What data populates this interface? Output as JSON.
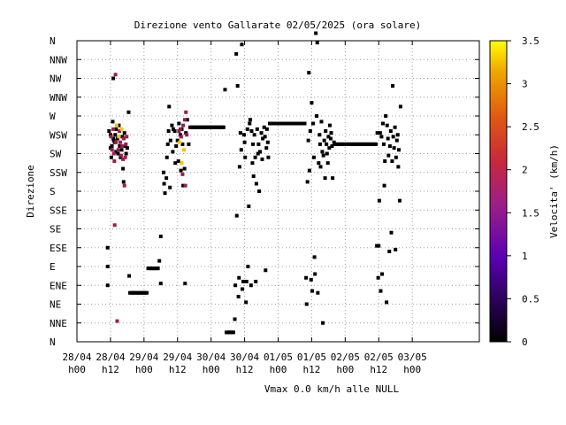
{
  "chart_data": {
    "type": "scatter",
    "title": "Direzione vento Gallarate 02/05/2025 (ora solare)",
    "ylabel": "Direzione",
    "footer": "Vmax 0.0 km/h  alle NULL",
    "colorbar_label": "Velocita' (km/h)",
    "colorbar_ticks": [
      "0",
      "0.5",
      "1",
      "1.5",
      "2",
      "2.5",
      "3",
      "3.5"
    ],
    "colorbar_range": [
      0,
      3.5
    ],
    "x_range_hours": [
      0,
      144
    ],
    "x_ticks": [
      {
        "h": 0,
        "l1": "28/04",
        "l2": "h00"
      },
      {
        "h": 12,
        "l1": "28/04",
        "l2": "h12"
      },
      {
        "h": 24,
        "l1": "29/04",
        "l2": "h00"
      },
      {
        "h": 36,
        "l1": "29/04",
        "l2": "h12"
      },
      {
        "h": 48,
        "l1": "30/04",
        "l2": "h00"
      },
      {
        "h": 60,
        "l1": "30/04",
        "l2": "h12"
      },
      {
        "h": 72,
        "l1": "01/05",
        "l2": "h00"
      },
      {
        "h": 84,
        "l1": "01/05",
        "l2": "h12"
      },
      {
        "h": 96,
        "l1": "02/05",
        "l2": "h00"
      },
      {
        "h": 108,
        "l1": "02/05",
        "l2": "h12"
      },
      {
        "h": 120,
        "l1": "03/05",
        "l2": "h00"
      }
    ],
    "y_categories": [
      "N",
      "NNE",
      "NE",
      "ENE",
      "E",
      "ESE",
      "SE",
      "SSE",
      "S",
      "SSW",
      "SW",
      "WSW",
      "W",
      "WNW",
      "NW",
      "NNW",
      "N"
    ],
    "grid": true,
    "colors": {
      "low": "#000000",
      "mid": "#9e1c4e",
      "high": "#f0c800"
    },
    "points": [
      [
        11,
        5
      ],
      [
        11,
        4
      ],
      [
        11,
        3
      ],
      [
        11.5,
        11.2
      ],
      [
        12,
        11
      ],
      [
        12,
        10.3
      ],
      [
        12.3,
        9.8
      ],
      [
        12.5,
        10.4
      ],
      [
        13,
        14
      ],
      [
        13,
        10.8
      ],
      [
        13.5,
        10.6
      ],
      [
        13.7,
        11
      ],
      [
        14,
        11.3
      ],
      [
        14,
        10.1
      ],
      [
        14.5,
        10.8
      ],
      [
        14.7,
        10
      ],
      [
        15,
        11.5
      ],
      [
        15.3,
        10.4
      ],
      [
        15.6,
        9.8
      ],
      [
        16,
        10.2
      ],
      [
        16.3,
        10.9
      ],
      [
        16.5,
        9.2
      ],
      [
        16.7,
        8.5
      ],
      [
        17,
        11.1
      ],
      [
        17.3,
        10.4
      ],
      [
        17.6,
        10
      ],
      [
        18,
        10.3
      ],
      [
        18.5,
        12.2
      ],
      [
        12.8,
        11.7
      ],
      [
        13.2,
        10.7
      ],
      [
        18.7,
        3.5
      ],
      [
        19,
        2.6
      ],
      [
        19.5,
        2.6
      ],
      [
        20,
        2.6
      ],
      [
        20.5,
        2.6
      ],
      [
        21,
        2.6
      ],
      [
        21.5,
        2.6
      ],
      [
        22,
        2.6
      ],
      [
        22.5,
        2.6
      ],
      [
        23,
        2.6
      ],
      [
        23.5,
        2.6
      ],
      [
        24,
        2.6
      ],
      [
        24.5,
        2.6
      ],
      [
        25,
        2.6
      ],
      [
        25.5,
        3.9
      ],
      [
        26,
        3.9
      ],
      [
        26.5,
        3.9
      ],
      [
        27,
        3.9
      ],
      [
        27.5,
        3.9
      ],
      [
        28,
        3.9
      ],
      [
        28.5,
        3.9
      ],
      [
        29,
        3.9
      ],
      [
        29.5,
        4.3
      ],
      [
        30,
        3.1
      ],
      [
        30,
        5.6
      ],
      [
        31,
        9
      ],
      [
        31.2,
        8.4
      ],
      [
        31.5,
        7.9
      ],
      [
        32,
        8.7
      ],
      [
        32.2,
        9.8
      ],
      [
        32.5,
        10.5
      ],
      [
        32.8,
        11.2
      ],
      [
        33,
        12.5
      ],
      [
        33.3,
        8.2
      ],
      [
        33.5,
        10.7
      ],
      [
        34,
        11.5
      ],
      [
        34.3,
        10.1
      ],
      [
        34.5,
        11.3
      ],
      [
        35,
        11.2
      ],
      [
        35.2,
        9.5
      ],
      [
        35.5,
        10.4
      ],
      [
        36,
        10.7
      ],
      [
        36.3,
        9.6
      ],
      [
        36.5,
        11.6
      ],
      [
        37,
        11
      ],
      [
        37.2,
        9.1
      ],
      [
        37.5,
        11.3
      ],
      [
        37.8,
        10.5
      ],
      [
        38,
        8.3
      ],
      [
        38.5,
        9.2
      ],
      [
        38.7,
        3.1
      ],
      [
        39,
        11.1
      ],
      [
        39.5,
        11.8
      ],
      [
        40,
        10.5
      ],
      [
        40.5,
        11.4
      ],
      [
        41,
        11.4
      ],
      [
        41.5,
        11.4
      ],
      [
        42,
        11.4
      ],
      [
        42.5,
        11.4
      ],
      [
        43,
        11.4
      ],
      [
        43.5,
        11.4
      ],
      [
        44,
        11.4
      ],
      [
        44.5,
        11.4
      ],
      [
        45,
        11.4
      ],
      [
        45.5,
        11.4
      ],
      [
        46,
        11.4
      ],
      [
        46.5,
        11.4
      ],
      [
        47,
        11.4
      ],
      [
        47.5,
        11.4
      ],
      [
        48,
        11.4
      ],
      [
        48.5,
        11.4
      ],
      [
        49,
        11.4
      ],
      [
        49.5,
        11.4
      ],
      [
        50,
        11.4
      ],
      [
        50.5,
        11.4
      ],
      [
        51,
        11.4
      ],
      [
        51.5,
        11.4
      ],
      [
        52,
        11.4
      ],
      [
        52.5,
        11.4
      ],
      [
        53,
        13.4
      ],
      [
        53.5,
        0.5
      ],
      [
        54,
        0.5
      ],
      [
        54.5,
        0.5
      ],
      [
        55,
        0.5
      ],
      [
        55.5,
        0.5
      ],
      [
        56,
        0.5
      ],
      [
        56.5,
        1.2
      ],
      [
        56.7,
        3
      ],
      [
        57,
        15.3
      ],
      [
        57.2,
        6.7
      ],
      [
        57.5,
        13.6
      ],
      [
        57.8,
        2.4
      ],
      [
        58,
        3.4
      ],
      [
        58.2,
        9.3
      ],
      [
        58.5,
        11.1
      ],
      [
        58.8,
        10.2
      ],
      [
        59,
        15.8
      ],
      [
        59.2,
        2.8
      ],
      [
        59.5,
        3.2
      ],
      [
        59.8,
        11
      ],
      [
        60,
        10.6
      ],
      [
        60.2,
        9.8
      ],
      [
        60.5,
        2.1
      ],
      [
        60.7,
        3.2
      ],
      [
        61,
        11.3
      ],
      [
        61.2,
        4
      ],
      [
        61.5,
        7.2
      ],
      [
        61.8,
        11.6
      ],
      [
        62,
        11.8
      ],
      [
        62.3,
        3
      ],
      [
        62.5,
        11.2
      ],
      [
        62.8,
        9.5
      ],
      [
        63,
        10.5
      ],
      [
        63.2,
        8.8
      ],
      [
        63.5,
        11
      ],
      [
        63.8,
        9.8
      ],
      [
        64,
        3.2
      ],
      [
        64.2,
        8.4
      ],
      [
        64.5,
        11.3
      ],
      [
        64.8,
        10
      ],
      [
        65,
        10.5
      ],
      [
        65.2,
        8
      ],
      [
        65.5,
        10.1
      ],
      [
        66,
        11.1
      ],
      [
        66.3,
        9.7
      ],
      [
        66.5,
        10.8
      ],
      [
        67,
        11.4
      ],
      [
        67.3,
        10.9
      ],
      [
        67.5,
        3.8
      ],
      [
        67.8,
        10.3
      ],
      [
        68,
        11.3
      ],
      [
        68.3,
        10.6
      ],
      [
        68.5,
        9.8
      ],
      [
        69,
        11.6
      ],
      [
        69.5,
        11.6
      ],
      [
        70,
        11.6
      ],
      [
        70.5,
        11.6
      ],
      [
        71,
        11.6
      ],
      [
        71.5,
        11.6
      ],
      [
        72,
        11.6
      ],
      [
        72.5,
        11.6
      ],
      [
        73,
        11.6
      ],
      [
        73.5,
        11.6
      ],
      [
        74,
        11.6
      ],
      [
        74.5,
        11.6
      ],
      [
        75,
        11.6
      ],
      [
        75.5,
        11.6
      ],
      [
        76,
        11.6
      ],
      [
        76.5,
        11.6
      ],
      [
        77,
        11.6
      ],
      [
        77.5,
        11.6
      ],
      [
        78,
        11.6
      ],
      [
        78.5,
        11.6
      ],
      [
        79,
        11.6
      ],
      [
        79.5,
        11.6
      ],
      [
        80,
        11.6
      ],
      [
        80.5,
        11.6
      ],
      [
        81,
        11.6
      ],
      [
        81.5,
        11.6
      ],
      [
        82,
        3.4
      ],
      [
        82.2,
        2
      ],
      [
        82.5,
        8.5
      ],
      [
        82.8,
        10.7
      ],
      [
        83,
        14.3
      ],
      [
        83.2,
        9.1
      ],
      [
        83.5,
        11.2
      ],
      [
        83.8,
        3.3
      ],
      [
        84,
        12.7
      ],
      [
        84.2,
        2.7
      ],
      [
        84.5,
        11.6
      ],
      [
        84.8,
        9.8
      ],
      [
        85,
        4.5
      ],
      [
        85.2,
        3.6
      ],
      [
        85.5,
        16.4
      ],
      [
        85.8,
        12
      ],
      [
        86,
        15.9
      ],
      [
        86.2,
        2.6
      ],
      [
        86.5,
        9.5
      ],
      [
        86.8,
        11
      ],
      [
        87,
        10.5
      ],
      [
        87.2,
        9.3
      ],
      [
        87.5,
        11.7
      ],
      [
        87.8,
        10.1
      ],
      [
        88,
        1
      ],
      [
        88.2,
        9.9
      ],
      [
        88.5,
        10.7
      ],
      [
        88.8,
        8.7
      ],
      [
        89,
        11.2
      ],
      [
        89.3,
        10.5
      ],
      [
        89.5,
        10
      ],
      [
        89.8,
        9.5
      ],
      [
        90,
        10.9
      ],
      [
        90.3,
        10.3
      ],
      [
        90.5,
        11.5
      ],
      [
        90.8,
        10.8
      ],
      [
        91,
        11.1
      ],
      [
        91.3,
        10.4
      ],
      [
        91.5,
        8.7
      ],
      [
        92,
        10.6
      ],
      [
        92.5,
        10.5
      ],
      [
        93,
        10.5
      ],
      [
        93.5,
        10.5
      ],
      [
        94,
        10.5
      ],
      [
        94.5,
        10.5
      ],
      [
        95,
        10.5
      ],
      [
        95.5,
        10.5
      ],
      [
        96,
        10.5
      ],
      [
        96.5,
        10.5
      ],
      [
        97,
        10.5
      ],
      [
        97.5,
        10.5
      ],
      [
        98,
        10.5
      ],
      [
        98.5,
        10.5
      ],
      [
        99,
        10.5
      ],
      [
        99.5,
        10.5
      ],
      [
        100,
        10.5
      ],
      [
        100.5,
        10.5
      ],
      [
        101,
        10.5
      ],
      [
        101.5,
        10.5
      ],
      [
        102,
        10.5
      ],
      [
        102.5,
        10.5
      ],
      [
        103,
        10.5
      ],
      [
        103.5,
        10.5
      ],
      [
        104,
        10.5
      ],
      [
        104.5,
        10.5
      ],
      [
        105,
        10.5
      ],
      [
        105.5,
        10.5
      ],
      [
        106,
        10.5
      ],
      [
        106.5,
        10.5
      ],
      [
        107,
        10.5
      ],
      [
        107.3,
        5.1
      ],
      [
        107.5,
        11.1
      ],
      [
        107.8,
        3.4
      ],
      [
        108,
        5.1
      ],
      [
        108.2,
        7.5
      ],
      [
        108.5,
        11.1
      ],
      [
        108.7,
        2.7
      ],
      [
        109,
        10.9
      ],
      [
        109.2,
        3.6
      ],
      [
        109.5,
        11.6
      ],
      [
        109.8,
        10.5
      ],
      [
        110,
        8.3
      ],
      [
        110.2,
        9.6
      ],
      [
        110.5,
        12
      ],
      [
        110.8,
        2.1
      ],
      [
        111,
        11.5
      ],
      [
        111.3,
        10.8
      ],
      [
        111.5,
        9.9
      ],
      [
        111.8,
        4.8
      ],
      [
        112,
        10.4
      ],
      [
        112.3,
        11.2
      ],
      [
        112.5,
        5.8
      ],
      [
        112.8,
        9.6
      ],
      [
        113,
        13.6
      ],
      [
        113.2,
        10.9
      ],
      [
        113.5,
        10.3
      ],
      [
        113.8,
        11.4
      ],
      [
        114,
        4.9
      ],
      [
        114.2,
        9.8
      ],
      [
        114.5,
        10.7
      ],
      [
        114.8,
        11
      ],
      [
        115,
        9.3
      ],
      [
        115.2,
        10.2
      ],
      [
        115.5,
        7.5
      ],
      [
        115.8,
        12.5
      ]
    ],
    "color_points": [
      [
        12.2,
        10.9,
        "mid"
      ],
      [
        12.6,
        10.2,
        "mid"
      ],
      [
        13,
        11.3,
        "mid"
      ],
      [
        13.2,
        10,
        "mid"
      ],
      [
        13.4,
        9.6,
        "mid"
      ],
      [
        13.8,
        14.2,
        "mid"
      ],
      [
        14,
        10.6,
        "mid"
      ],
      [
        14.2,
        11.5,
        "high"
      ],
      [
        14.4,
        1.1,
        "mid"
      ],
      [
        14.8,
        10.2,
        "mid"
      ],
      [
        15,
        10.9,
        "high"
      ],
      [
        15.2,
        11.2,
        "mid"
      ],
      [
        15.5,
        10.6,
        "mid"
      ],
      [
        15.8,
        9.9,
        "mid"
      ],
      [
        16,
        11.3,
        "high"
      ],
      [
        16.2,
        10.4,
        "mid"
      ],
      [
        16.5,
        9.7,
        "mid"
      ],
      [
        16.8,
        10.8,
        "mid"
      ],
      [
        17,
        8.3,
        "mid"
      ],
      [
        17.3,
        9.8,
        "mid"
      ],
      [
        17.5,
        10.5,
        "mid"
      ],
      [
        17.8,
        10.9,
        "mid"
      ],
      [
        13.5,
        6.2,
        "mid"
      ],
      [
        36.5,
        11.2,
        "mid"
      ],
      [
        36.8,
        10.6,
        "high"
      ],
      [
        37,
        11.3,
        "mid"
      ],
      [
        37.3,
        10.9,
        "mid"
      ],
      [
        37.5,
        9.5,
        "high"
      ],
      [
        37.8,
        8.9,
        "mid"
      ],
      [
        38,
        11.5,
        "mid"
      ],
      [
        38.3,
        10.2,
        "high"
      ],
      [
        38.6,
        11.8,
        "mid"
      ],
      [
        38.8,
        8.3,
        "mid"
      ],
      [
        39,
        12.2,
        "mid"
      ],
      [
        39.3,
        11,
        "mid"
      ]
    ]
  }
}
